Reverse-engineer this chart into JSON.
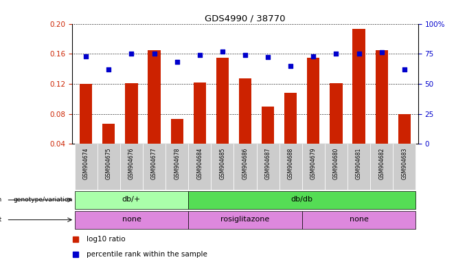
{
  "title": "GDS4990 / 38770",
  "samples": [
    "GSM904674",
    "GSM904675",
    "GSM904676",
    "GSM904677",
    "GSM904678",
    "GSM904684",
    "GSM904685",
    "GSM904686",
    "GSM904687",
    "GSM904688",
    "GSM904679",
    "GSM904680",
    "GSM904681",
    "GSM904682",
    "GSM904683"
  ],
  "log10_ratio": [
    0.12,
    0.067,
    0.121,
    0.165,
    0.073,
    0.122,
    0.155,
    0.127,
    0.09,
    0.108,
    0.155,
    0.121,
    0.193,
    0.165,
    0.08
  ],
  "percentile_rank": [
    73,
    62,
    75,
    75,
    68,
    74,
    77,
    74,
    72,
    65,
    73,
    75,
    75,
    76,
    62
  ],
  "bar_color": "#cc2200",
  "dot_color": "#0000cc",
  "ylim_left": [
    0.04,
    0.2
  ],
  "ylim_right": [
    0,
    100
  ],
  "yticks_left": [
    0.04,
    0.08,
    0.12,
    0.16,
    0.2
  ],
  "yticks_right": [
    0,
    25,
    50,
    75,
    100
  ],
  "ytick_labels_right": [
    "0",
    "25",
    "50",
    "75",
    "100%"
  ],
  "groups": [
    {
      "label": "db/+",
      "start": 0,
      "end": 5,
      "color": "#aaffaa"
    },
    {
      "label": "db/db",
      "start": 5,
      "end": 15,
      "color": "#55dd55"
    }
  ],
  "agent_boundaries": [
    {
      "label": "none",
      "start": 0,
      "end": 5
    },
    {
      "label": "rosiglitazone",
      "start": 5,
      "end": 10
    },
    {
      "label": "none",
      "start": 10,
      "end": 15
    }
  ],
  "agent_color": "#dd88dd",
  "legend_bar_label": "log10 ratio",
  "legend_dot_label": "percentile rank within the sample",
  "label_color_left": "#cc2200",
  "label_color_right": "#0000cc",
  "sample_box_color": "#cccccc"
}
